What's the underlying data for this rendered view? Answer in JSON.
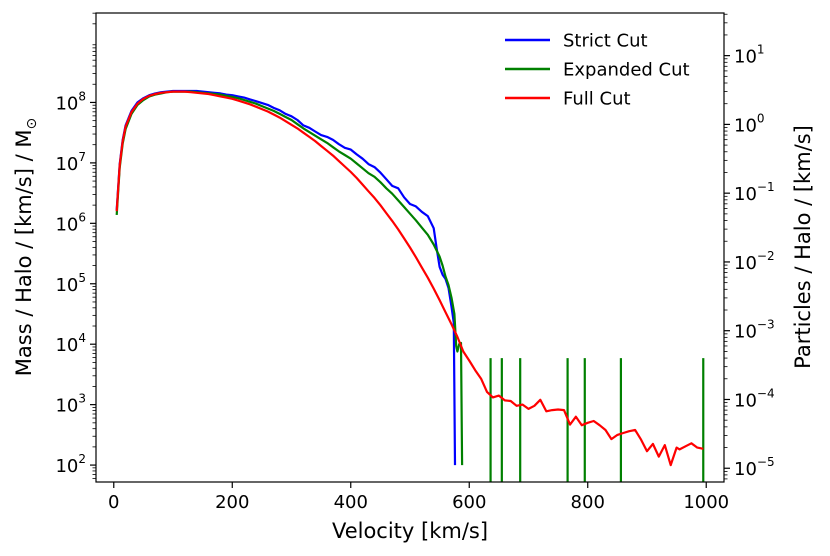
{
  "chart_data": {
    "type": "line",
    "title": "",
    "xlabel": "Velocity [km/s]",
    "ylabel_left": "Mass / Halo / [km/s] / M",
    "ylabel_left_symbol_subscript": "⊙",
    "ylabel_right": "Particles / Halo / [km/s]",
    "xlim": [
      -30,
      1030
    ],
    "ylim_left_log10": [
      1.72,
      9.48
    ],
    "ylim_right_log10": [
      -5.2,
      1.62
    ],
    "xticks": [
      0,
      200,
      400,
      600,
      800,
      1000
    ],
    "yticks_left": [
      {
        "exp": 2,
        "label": "10",
        "sup": "2"
      },
      {
        "exp": 3,
        "label": "10",
        "sup": "3"
      },
      {
        "exp": 4,
        "label": "10",
        "sup": "4"
      },
      {
        "exp": 5,
        "label": "10",
        "sup": "5"
      },
      {
        "exp": 6,
        "label": "10",
        "sup": "6"
      },
      {
        "exp": 7,
        "label": "10",
        "sup": "7"
      },
      {
        "exp": 8,
        "label": "10",
        "sup": "8"
      }
    ],
    "yticks_right": [
      {
        "exp": -5,
        "label": "10",
        "sup": "−5"
      },
      {
        "exp": -4,
        "label": "10",
        "sup": "−4"
      },
      {
        "exp": -3,
        "label": "10",
        "sup": "−3"
      },
      {
        "exp": -2,
        "label": "10",
        "sup": "−2"
      },
      {
        "exp": -1,
        "label": "10",
        "sup": "−1"
      },
      {
        "exp": 0,
        "label": "10",
        "sup": "0"
      },
      {
        "exp": 1,
        "label": "10",
        "sup": "1"
      }
    ],
    "legend_position": "top-right",
    "series": [
      {
        "name": "Strict Cut",
        "color": "#0000ff",
        "x_log10y": [
          [
            5,
            6.22
          ],
          [
            10,
            6.98
          ],
          [
            15,
            7.38
          ],
          [
            20,
            7.62
          ],
          [
            30,
            7.86
          ],
          [
            40,
            8.0
          ],
          [
            50,
            8.07
          ],
          [
            60,
            8.12
          ],
          [
            70,
            8.15
          ],
          [
            80,
            8.17
          ],
          [
            90,
            8.18
          ],
          [
            100,
            8.19
          ],
          [
            110,
            8.19
          ],
          [
            120,
            8.19
          ],
          [
            130,
            8.19
          ],
          [
            140,
            8.19
          ],
          [
            150,
            8.18
          ],
          [
            160,
            8.17
          ],
          [
            170,
            8.16
          ],
          [
            180,
            8.15
          ],
          [
            190,
            8.13
          ],
          [
            200,
            8.12
          ],
          [
            210,
            8.1
          ],
          [
            220,
            8.08
          ],
          [
            230,
            8.05
          ],
          [
            240,
            8.02
          ],
          [
            250,
            7.99
          ],
          [
            260,
            7.96
          ],
          [
            270,
            7.91
          ],
          [
            280,
            7.87
          ],
          [
            290,
            7.81
          ],
          [
            300,
            7.77
          ],
          [
            310,
            7.71
          ],
          [
            320,
            7.62
          ],
          [
            330,
            7.58
          ],
          [
            340,
            7.52
          ],
          [
            350,
            7.46
          ],
          [
            360,
            7.43
          ],
          [
            370,
            7.38
          ],
          [
            380,
            7.31
          ],
          [
            390,
            7.25
          ],
          [
            400,
            7.22
          ],
          [
            410,
            7.14
          ],
          [
            420,
            7.07
          ],
          [
            430,
            6.98
          ],
          [
            440,
            6.93
          ],
          [
            450,
            6.84
          ],
          [
            460,
            6.73
          ],
          [
            470,
            6.62
          ],
          [
            480,
            6.58
          ],
          [
            490,
            6.43
          ],
          [
            500,
            6.32
          ],
          [
            510,
            6.28
          ],
          [
            520,
            6.19
          ],
          [
            530,
            6.12
          ],
          [
            540,
            5.92
          ],
          [
            545,
            5.58
          ],
          [
            550,
            5.28
          ],
          [
            555,
            5.15
          ],
          [
            560,
            5.08
          ],
          [
            565,
            4.93
          ],
          [
            570,
            4.62
          ],
          [
            574,
            4.35
          ],
          [
            576,
            2.0
          ]
        ]
      },
      {
        "name": "Expanded Cut",
        "color": "#008000",
        "x_log10y": [
          [
            5,
            6.14
          ],
          [
            10,
            6.92
          ],
          [
            15,
            7.32
          ],
          [
            20,
            7.56
          ],
          [
            30,
            7.81
          ],
          [
            40,
            7.96
          ],
          [
            50,
            8.04
          ],
          [
            60,
            8.1
          ],
          [
            70,
            8.13
          ],
          [
            80,
            8.15
          ],
          [
            90,
            8.17
          ],
          [
            100,
            8.18
          ],
          [
            110,
            8.18
          ],
          [
            120,
            8.18
          ],
          [
            130,
            8.18
          ],
          [
            140,
            8.17
          ],
          [
            150,
            8.16
          ],
          [
            160,
            8.15
          ],
          [
            170,
            8.14
          ],
          [
            180,
            8.13
          ],
          [
            190,
            8.11
          ],
          [
            200,
            8.09
          ],
          [
            210,
            8.07
          ],
          [
            220,
            8.04
          ],
          [
            230,
            8.01
          ],
          [
            240,
            7.98
          ],
          [
            250,
            7.94
          ],
          [
            260,
            7.9
          ],
          [
            270,
            7.86
          ],
          [
            280,
            7.81
          ],
          [
            290,
            7.76
          ],
          [
            300,
            7.71
          ],
          [
            310,
            7.64
          ],
          [
            320,
            7.57
          ],
          [
            330,
            7.51
          ],
          [
            340,
            7.45
          ],
          [
            350,
            7.39
          ],
          [
            360,
            7.33
          ],
          [
            370,
            7.26
          ],
          [
            380,
            7.19
          ],
          [
            390,
            7.13
          ],
          [
            400,
            7.07
          ],
          [
            410,
            6.99
          ],
          [
            420,
            6.91
          ],
          [
            430,
            6.83
          ],
          [
            440,
            6.77
          ],
          [
            450,
            6.68
          ],
          [
            460,
            6.58
          ],
          [
            470,
            6.49
          ],
          [
            480,
            6.38
          ],
          [
            490,
            6.27
          ],
          [
            500,
            6.16
          ],
          [
            510,
            6.05
          ],
          [
            520,
            5.93
          ],
          [
            530,
            5.81
          ],
          [
            540,
            5.65
          ],
          [
            550,
            5.45
          ],
          [
            555,
            5.3
          ],
          [
            560,
            5.12
          ],
          [
            565,
            4.98
          ],
          [
            570,
            4.77
          ],
          [
            575,
            4.5
          ],
          [
            578,
            3.97
          ],
          [
            580,
            3.88
          ],
          [
            583,
            4.0
          ],
          [
            586,
            4.02
          ],
          [
            588,
            2.0
          ]
        ],
        "spikes_x": [
          636,
          655,
          686,
          766,
          795,
          856,
          995
        ],
        "spikes_log10y": 3.77
      },
      {
        "name": "Full Cut",
        "color": "#ff0000",
        "x_log10y": [
          [
            5,
            6.2
          ],
          [
            10,
            6.96
          ],
          [
            15,
            7.36
          ],
          [
            20,
            7.6
          ],
          [
            30,
            7.84
          ],
          [
            40,
            7.98
          ],
          [
            50,
            8.06
          ],
          [
            60,
            8.11
          ],
          [
            70,
            8.14
          ],
          [
            80,
            8.16
          ],
          [
            90,
            8.17
          ],
          [
            100,
            8.18
          ],
          [
            110,
            8.18
          ],
          [
            120,
            8.18
          ],
          [
            130,
            8.17
          ],
          [
            140,
            8.16
          ],
          [
            150,
            8.15
          ],
          [
            160,
            8.14
          ],
          [
            170,
            8.12
          ],
          [
            180,
            8.1
          ],
          [
            190,
            8.08
          ],
          [
            200,
            8.06
          ],
          [
            210,
            8.03
          ],
          [
            220,
            8.0
          ],
          [
            230,
            7.97
          ],
          [
            240,
            7.93
          ],
          [
            250,
            7.89
          ],
          [
            260,
            7.85
          ],
          [
            270,
            7.8
          ],
          [
            280,
            7.75
          ],
          [
            290,
            7.69
          ],
          [
            300,
            7.63
          ],
          [
            310,
            7.57
          ],
          [
            320,
            7.5
          ],
          [
            330,
            7.43
          ],
          [
            340,
            7.36
          ],
          [
            350,
            7.28
          ],
          [
            360,
            7.2
          ],
          [
            370,
            7.12
          ],
          [
            380,
            7.03
          ],
          [
            390,
            6.94
          ],
          [
            400,
            6.85
          ],
          [
            410,
            6.75
          ],
          [
            420,
            6.64
          ],
          [
            430,
            6.53
          ],
          [
            440,
            6.42
          ],
          [
            450,
            6.3
          ],
          [
            460,
            6.17
          ],
          [
            470,
            6.04
          ],
          [
            480,
            5.9
          ],
          [
            490,
            5.75
          ],
          [
            500,
            5.6
          ],
          [
            510,
            5.44
          ],
          [
            520,
            5.27
          ],
          [
            530,
            5.1
          ],
          [
            540,
            4.92
          ],
          [
            550,
            4.73
          ],
          [
            560,
            4.53
          ],
          [
            570,
            4.33
          ],
          [
            580,
            4.12
          ],
          [
            590,
            3.88
          ],
          [
            600,
            3.73
          ],
          [
            610,
            3.57
          ],
          [
            620,
            3.43
          ],
          [
            630,
            3.21
          ],
          [
            640,
            3.12
          ],
          [
            650,
            3.15
          ],
          [
            660,
            3.07
          ],
          [
            670,
            3.06
          ],
          [
            680,
            2.98
          ],
          [
            690,
            3.0
          ],
          [
            700,
            2.93
          ],
          [
            710,
            2.98
          ],
          [
            720,
            3.08
          ],
          [
            730,
            2.89
          ],
          [
            740,
            2.91
          ],
          [
            750,
            2.92
          ],
          [
            760,
            2.91
          ],
          [
            770,
            2.67
          ],
          [
            780,
            2.8
          ],
          [
            790,
            2.66
          ],
          [
            800,
            2.7
          ],
          [
            810,
            2.73
          ],
          [
            820,
            2.66
          ],
          [
            830,
            2.58
          ],
          [
            840,
            2.43
          ],
          [
            850,
            2.5
          ],
          [
            860,
            2.53
          ],
          [
            870,
            2.56
          ],
          [
            880,
            2.58
          ],
          [
            890,
            2.42
          ],
          [
            900,
            2.23
          ],
          [
            910,
            2.35
          ],
          [
            920,
            2.14
          ],
          [
            930,
            2.33
          ],
          [
            940,
            2.0
          ],
          [
            950,
            2.29
          ],
          [
            955,
            2.26
          ],
          [
            965,
            2.31
          ],
          [
            975,
            2.36
          ],
          [
            985,
            2.29
          ],
          [
            995,
            2.27
          ]
        ]
      }
    ]
  }
}
